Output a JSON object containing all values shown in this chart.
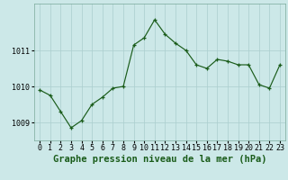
{
  "x": [
    0,
    1,
    2,
    3,
    4,
    5,
    6,
    7,
    8,
    9,
    10,
    11,
    12,
    13,
    14,
    15,
    16,
    17,
    18,
    19,
    20,
    21,
    22,
    23
  ],
  "y": [
    1009.9,
    1009.75,
    1009.3,
    1008.85,
    1009.05,
    1009.5,
    1009.7,
    1009.95,
    1010.0,
    1011.15,
    1011.35,
    1011.85,
    1011.45,
    1011.2,
    1011.0,
    1010.6,
    1010.5,
    1010.75,
    1010.7,
    1010.6,
    1010.6,
    1010.05,
    1009.95,
    1010.6
  ],
  "title": "Graphe pression niveau de la mer (hPa)",
  "xlim": [
    -0.5,
    23.5
  ],
  "ylim": [
    1008.5,
    1012.3
  ],
  "yticks": [
    1009,
    1010,
    1011
  ],
  "xtick_labels": [
    "0",
    "1",
    "2",
    "3",
    "4",
    "5",
    "6",
    "7",
    "8",
    "9",
    "10",
    "11",
    "12",
    "13",
    "14",
    "15",
    "16",
    "17",
    "18",
    "19",
    "20",
    "21",
    "22",
    "23"
  ],
  "line_color": "#1a5c1a",
  "marker": "+",
  "bg_color": "#cce8e8",
  "grid_color": "#aacece",
  "title_fontsize": 7.5,
  "tick_fontsize": 6.0
}
